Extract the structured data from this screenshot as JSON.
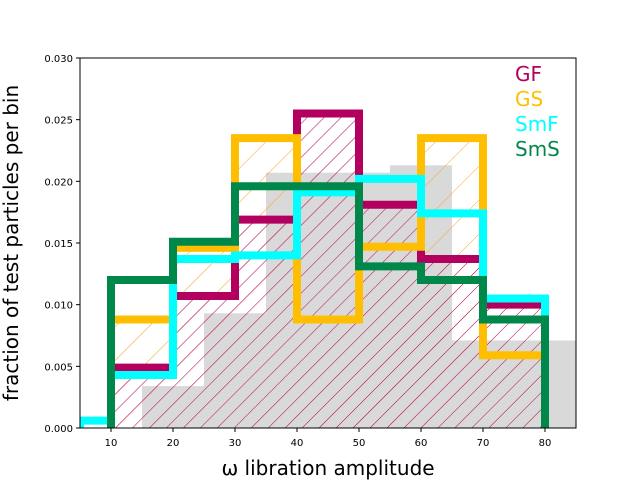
{
  "chart_data": {
    "type": "histogram",
    "xlabel": "ω libration amplitude",
    "ylabel": "fraction of test particles per bin",
    "xlim": [
      5,
      85
    ],
    "ylim": [
      0,
      0.03
    ],
    "xticks": [
      "10",
      "20",
      "30",
      "40",
      "50",
      "60",
      "70",
      "80"
    ],
    "yticks": [
      "0.000",
      "0.005",
      "0.010",
      "0.015",
      "0.020",
      "0.025",
      "0.030"
    ],
    "legend_position": "top-right",
    "background_histogram": {
      "bins": [
        [
          5,
          15
        ],
        [
          15,
          25
        ],
        [
          25,
          35
        ],
        [
          35,
          45
        ],
        [
          45,
          55
        ],
        [
          55,
          65
        ],
        [
          65,
          75
        ],
        [
          75,
          85
        ]
      ],
      "values": [
        0.0,
        0.0034,
        0.0093,
        0.0207,
        0.0207,
        0.0213,
        0.0071,
        0.0071
      ],
      "color": "#d9d9d9"
    },
    "hatched": [
      {
        "series": "GS",
        "color": "#f5a623",
        "density": "sparse"
      },
      {
        "series": "GF",
        "color": "#b0005a",
        "density": "dense"
      }
    ],
    "series": [
      {
        "name": "GF",
        "color": "#b3005e",
        "edges": [
          10,
          20,
          30,
          40,
          50,
          60,
          70,
          80
        ],
        "values": [
          0.0049,
          0.0107,
          0.0169,
          0.0255,
          0.0181,
          0.0137,
          0.01
        ]
      },
      {
        "name": "GS",
        "color": "#ffbf00",
        "edges": [
          10,
          20,
          30,
          40,
          50,
          60,
          70,
          80
        ],
        "values": [
          0.0088,
          0.0146,
          0.0235,
          0.0088,
          0.0147,
          0.0235,
          0.0059
        ]
      },
      {
        "name": "SmF",
        "color": "#00ffff",
        "edges": [
          5,
          10,
          20,
          30,
          40,
          50,
          60,
          70,
          80
        ],
        "values": [
          0.0006,
          0.0043,
          0.0137,
          0.014,
          0.0191,
          0.0202,
          0.0174,
          0.0105
        ]
      },
      {
        "name": "SmS",
        "color": "#00874a",
        "edges": [
          10,
          20,
          30,
          40,
          50,
          60,
          70,
          80
        ],
        "values": [
          0.012,
          0.0151,
          0.0196,
          0.0196,
          0.0131,
          0.012,
          0.0088
        ]
      }
    ]
  }
}
